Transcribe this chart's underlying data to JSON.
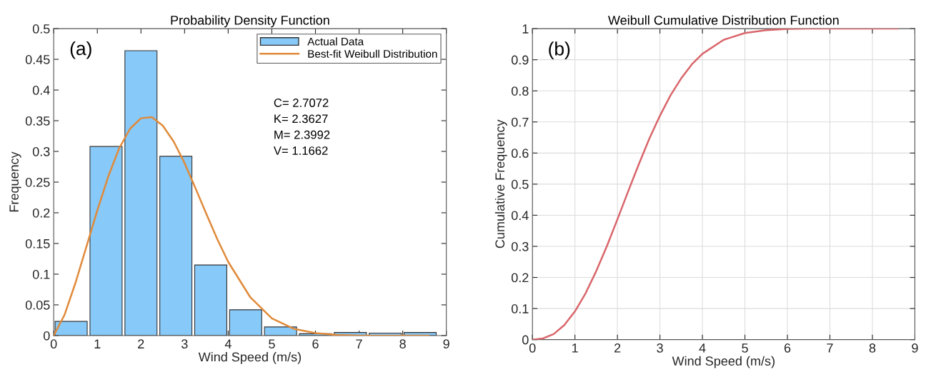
{
  "chart_data": [
    {
      "type": "histogram",
      "title": "Probability Density Function",
      "xlabel": "Wind Speed (m/s)",
      "ylabel": "Frequency",
      "series": [
        {
          "name": "Actual Data",
          "type": "histogram",
          "color": "#87c9f8",
          "bins": [
            0,
            0.8,
            1.6,
            2.4,
            3.2,
            4.0,
            4.8,
            5.6,
            6.4,
            7.2,
            8.0,
            8.8
          ],
          "values": [
            0.023,
            0.308,
            0.464,
            0.292,
            0.115,
            0.042,
            0.014,
            0.003,
            0.005,
            0.004,
            0.005
          ]
        },
        {
          "name": "Best-fit Weibull Distribution",
          "type": "line",
          "color": "#e08a3a",
          "x": [
            0,
            0.25,
            0.5,
            0.75,
            1.0,
            1.25,
            1.5,
            1.75,
            2.0,
            2.25,
            2.5,
            2.75,
            3.0,
            3.25,
            3.5,
            3.75,
            4.0,
            4.5,
            5.0,
            5.5,
            6.0,
            6.5,
            7.0,
            8.6
          ],
          "values": [
            0,
            0.034,
            0.086,
            0.145,
            0.204,
            0.259,
            0.305,
            0.337,
            0.354,
            0.356,
            0.342,
            0.316,
            0.281,
            0.24,
            0.198,
            0.157,
            0.12,
            0.063,
            0.028,
            0.011,
            0.004,
            0.001,
            0,
            0
          ]
        }
      ],
      "xlim": [
        0,
        9
      ],
      "xticks": [
        0,
        1,
        2,
        3,
        4,
        5,
        6,
        7,
        8,
        9
      ],
      "ylim": [
        0,
        0.5
      ],
      "yticks": [
        0,
        0.05,
        0.1,
        0.15,
        0.2,
        0.25,
        0.3,
        0.35,
        0.4,
        0.45,
        0.5
      ],
      "legend": "top right",
      "grid": false,
      "annotations": [
        "(a)",
        "C= 2.7072",
        "K= 2.3627",
        "M= 2.3992",
        "V= 1.1662"
      ]
    },
    {
      "type": "line",
      "title": "Weibull Cumulative Distribution Function",
      "xlabel": "Wind Speed (m/s)",
      "ylabel": "Cumulative Frequency",
      "color": "#d9666b",
      "x": [
        0,
        0.25,
        0.5,
        0.75,
        1.0,
        1.25,
        1.5,
        1.75,
        2.0,
        2.25,
        2.5,
        2.75,
        3.0,
        3.25,
        3.5,
        3.75,
        4.0,
        4.5,
        5.0,
        5.5,
        6.0,
        6.5,
        7.0,
        8.6
      ],
      "values": [
        0,
        0.004,
        0.018,
        0.047,
        0.091,
        0.149,
        0.22,
        0.3,
        0.387,
        0.476,
        0.563,
        0.646,
        0.72,
        0.786,
        0.84,
        0.885,
        0.919,
        0.964,
        0.986,
        0.995,
        0.999,
        1.0,
        1.0,
        1.0
      ],
      "xlim": [
        0,
        9
      ],
      "xticks": [
        0,
        1,
        2,
        3,
        4,
        5,
        6,
        7,
        8,
        9
      ],
      "ylim": [
        0,
        1
      ],
      "yticks": [
        0,
        0.1,
        0.2,
        0.3,
        0.4,
        0.5,
        0.6,
        0.7,
        0.8,
        0.9,
        1
      ],
      "grid": true,
      "annotations": [
        "(b)"
      ]
    }
  ]
}
